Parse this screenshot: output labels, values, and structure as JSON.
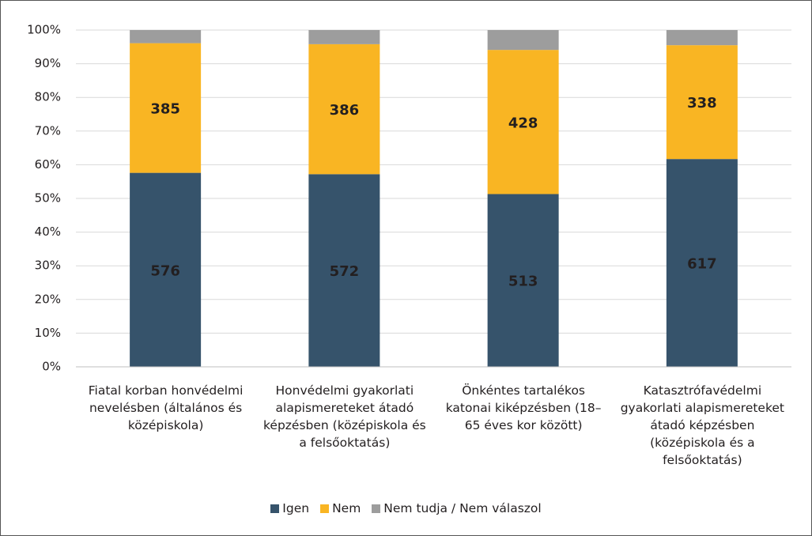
{
  "chart_data": {
    "type": "stacked_percent",
    "categories": [
      "Fiatal korban honvédelmi nevelésben (általános és középiskola)",
      "Honvédelmi gyakorlati alapismereteket átadó képzésben (középiskola és a felsőoktatás)",
      "Önkéntes tartalékos katonai kiképzésben (18–65 éves kor között)",
      "Katasztrófavédelmi gyakorlati alapismereteket átadó képzésben (középiskola és a felsőoktatás)"
    ],
    "series": [
      {
        "name": "Igen",
        "color": "#36536b",
        "values": [
          576,
          572,
          513,
          617
        ],
        "label_color": "#ffffff"
      },
      {
        "name": "Nem",
        "color": "#f9b523",
        "values": [
          385,
          386,
          428,
          338
        ],
        "label_color": "#231f20"
      },
      {
        "name": "Nem tudja / Nem válaszol",
        "color": "#9d9d9d",
        "values": [
          39,
          42,
          59,
          45
        ]
      }
    ],
    "ylim": [
      0,
      100
    ],
    "yticks": [
      {
        "value": 0,
        "label": "0%"
      },
      {
        "value": 10,
        "label": "10%"
      },
      {
        "value": 20,
        "label": "20%"
      },
      {
        "value": 30,
        "label": "30%"
      },
      {
        "value": 40,
        "label": "40%"
      },
      {
        "value": 50,
        "label": "50%"
      },
      {
        "value": 60,
        "label": "60%"
      },
      {
        "value": 70,
        "label": "70%"
      },
      {
        "value": 80,
        "label": "80%"
      },
      {
        "value": 90,
        "label": "90%"
      },
      {
        "value": 100,
        "label": "100%"
      }
    ],
    "grid": true,
    "legend": "bottom"
  }
}
